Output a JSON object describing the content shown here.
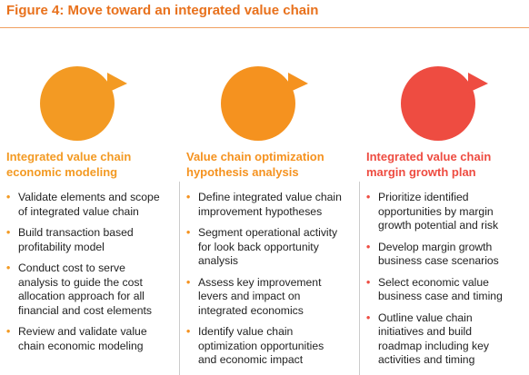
{
  "figure": {
    "title": "Figure 4: Move toward an integrated value chain"
  },
  "columns": [
    {
      "color": "#f39a23",
      "heading_line1": "Integrated value chain",
      "heading_line2": "economic modeling",
      "bullets": [
        [
          "Validate elements and scope",
          "of integrated value chain"
        ],
        [
          "Build transaction based",
          "profitability model"
        ],
        [
          "Conduct cost to serve",
          "analysis to guide the cost",
          "allocation approach for all",
          "financial and cost elements"
        ],
        [
          "Review and validate value",
          "chain economic modeling"
        ]
      ]
    },
    {
      "color": "#f5921f",
      "heading_line1": "Value chain optimization",
      "heading_line2": "hypothesis analysis",
      "bullets": [
        [
          "Define integrated value chain",
          "improvement hypotheses"
        ],
        [
          "Segment operational activity",
          "for look back opportunity",
          "analysis"
        ],
        [
          "Assess key improvement",
          "levers and impact on",
          "integrated economics"
        ],
        [
          "Identify value chain",
          "optimization opportunities",
          "and economic impact"
        ]
      ]
    },
    {
      "color": "#ee4c41",
      "heading_line1": "Integrated value chain",
      "heading_line2": "margin growth plan",
      "bullets": [
        [
          "Prioritize identified",
          "opportunities by margin",
          "growth potential and risk"
        ],
        [
          "Develop margin growth",
          "business case scenarios"
        ],
        [
          "Select economic value",
          "business case and timing"
        ],
        [
          "Outline value chain",
          "initiatives and build",
          "roadmap including key",
          "activities and timing"
        ]
      ]
    }
  ]
}
